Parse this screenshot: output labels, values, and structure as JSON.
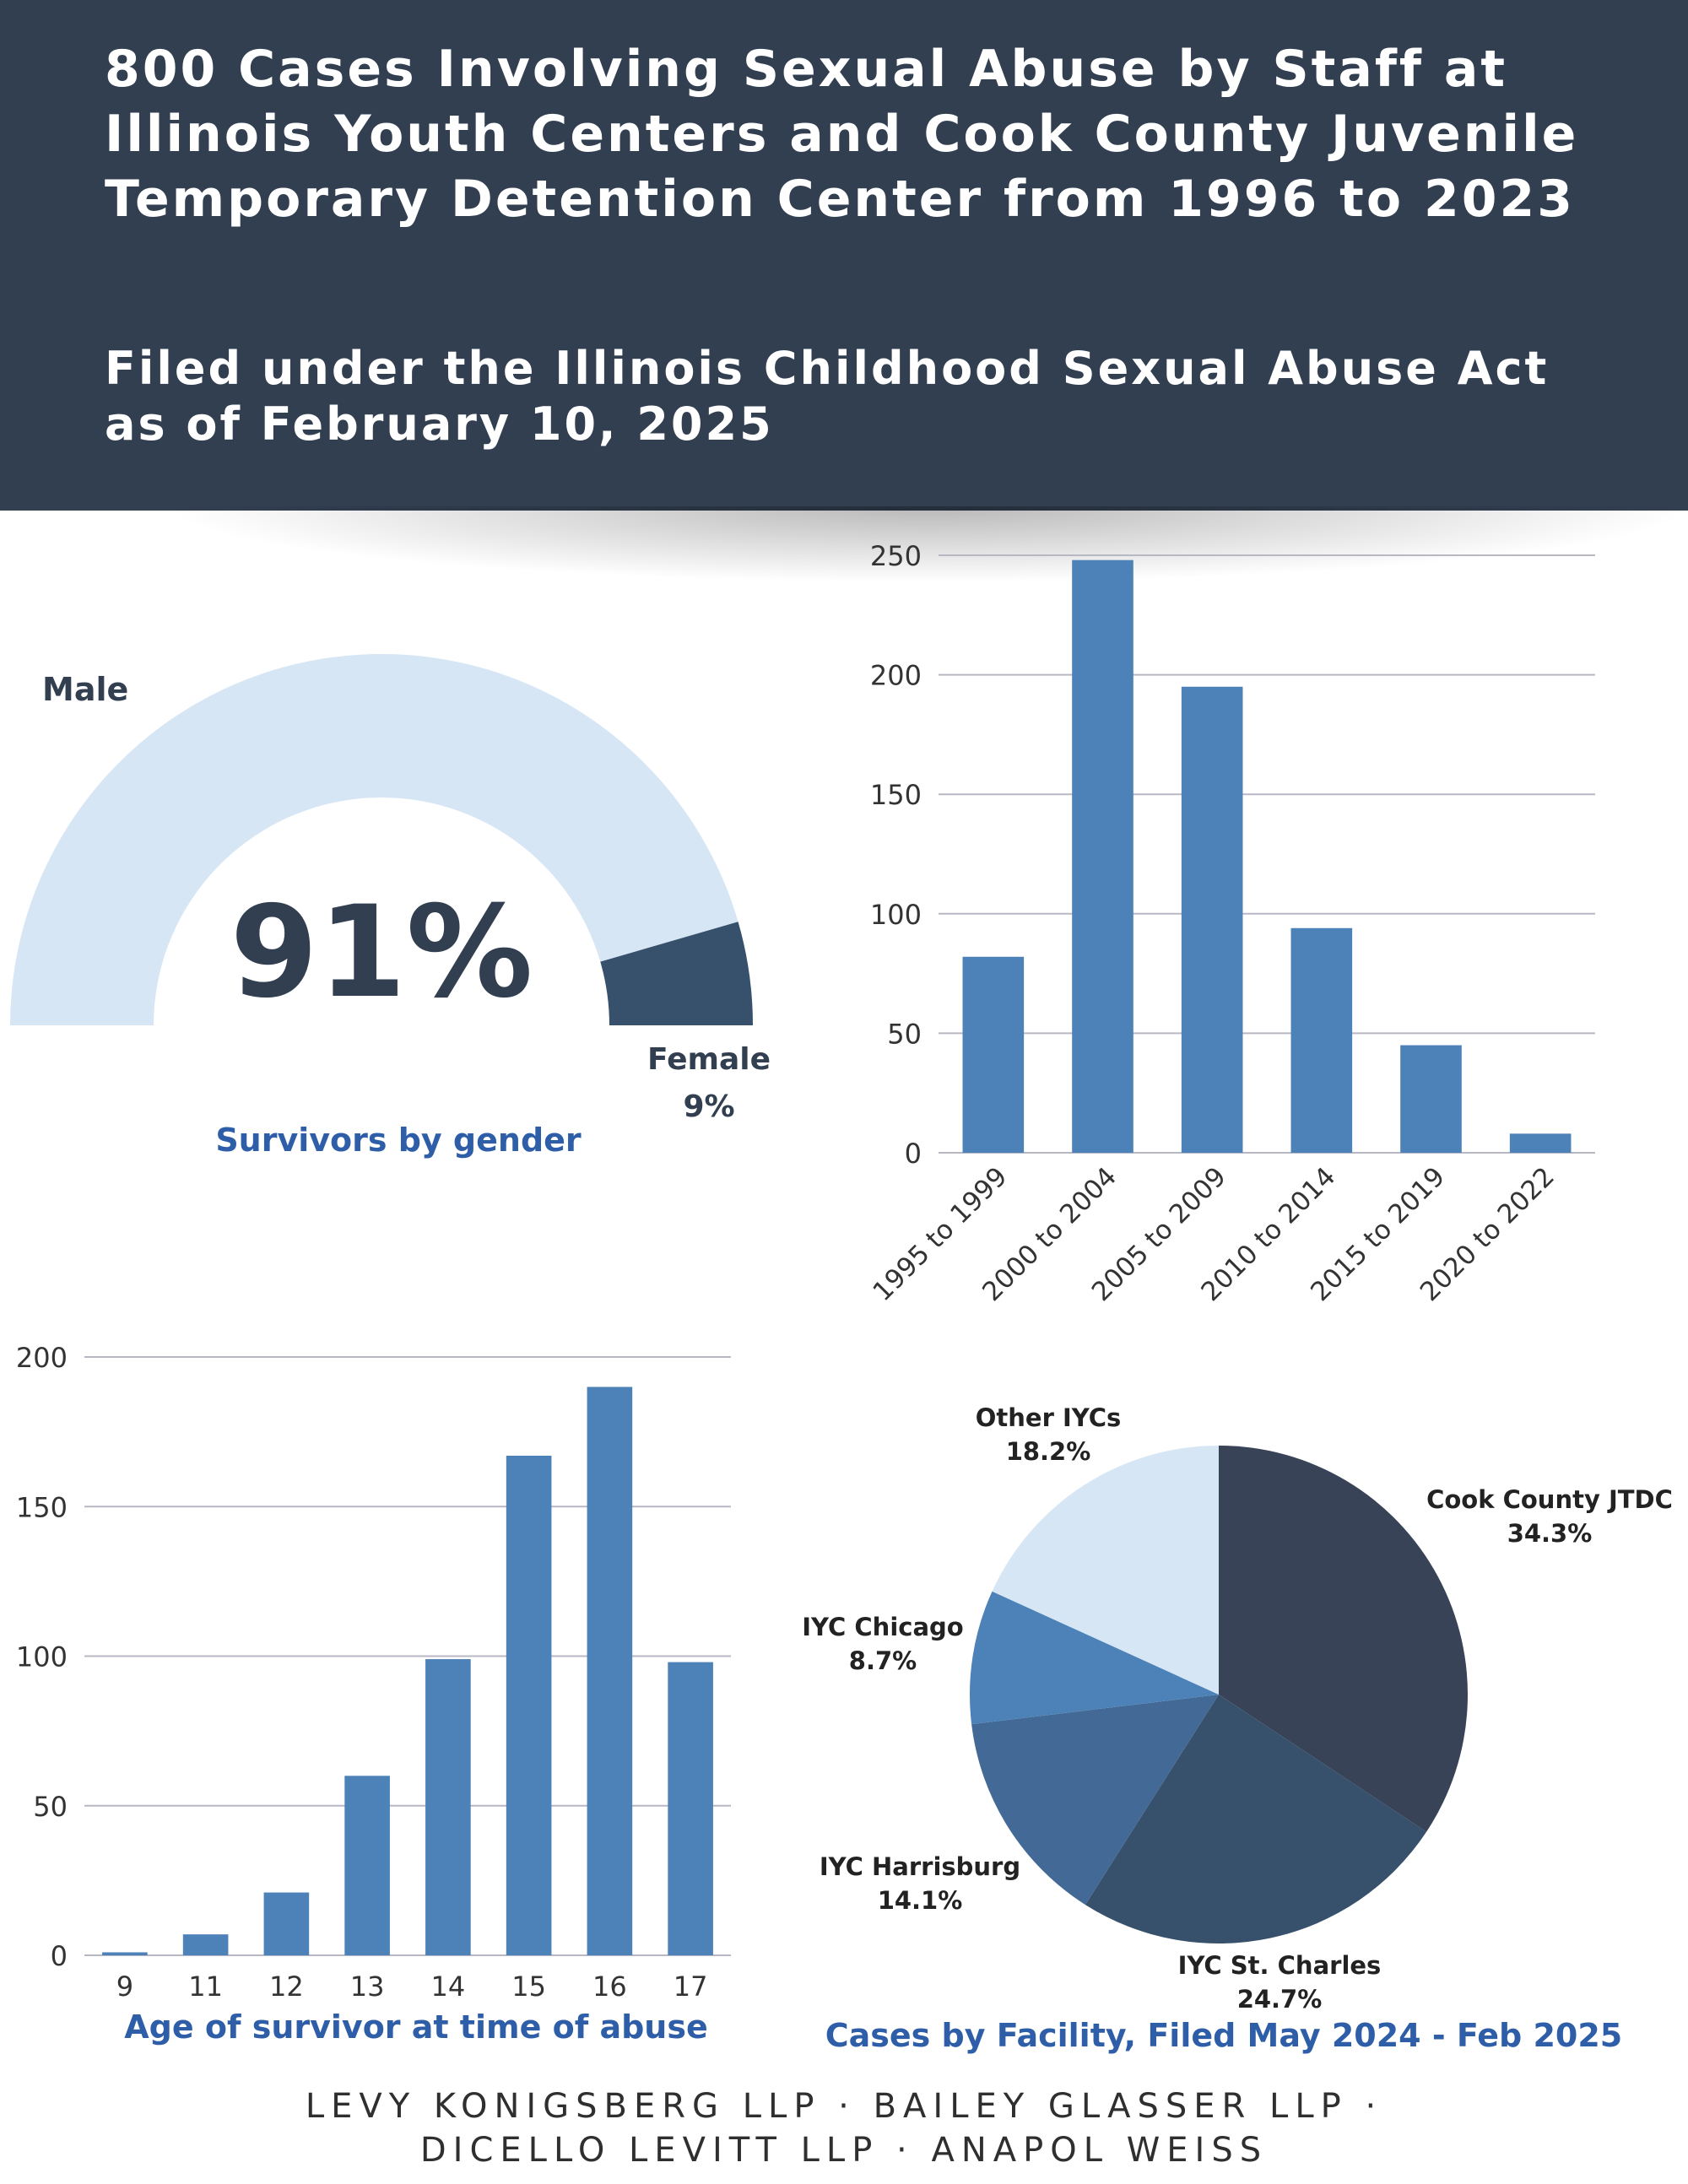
{
  "header": {
    "title": "800 Cases Involving Sexual Abuse by Staff at Illinois Youth Centers and Cook County Juvenile Temporary Detention Center from 1996 to 2023",
    "subtitle": "Filed under the Illinois Childhood Sexual Abuse Act as of February 10, 2025"
  },
  "footer": {
    "line1": "LEVY KONIGSBERG LLP · BAILEY GLASSER LLP ·",
    "line2": "DICELLO LEVITT LLP · ANAPOL WEISS"
  },
  "colors": {
    "header_bg": "#323f51",
    "bar": "#4d82b8",
    "gauge_light": "#d6e6f5",
    "gauge_dark": "#37506c",
    "caption": "#2f5ea8",
    "big_text": "#323f51"
  },
  "chart_data": [
    {
      "type": "gauge",
      "title": "Survivors by gender",
      "segments": [
        {
          "name": "Male",
          "value": 91,
          "color": "#d6e6f5"
        },
        {
          "name": "Female",
          "value": 9,
          "color": "#37506c"
        }
      ],
      "center_label": "91%",
      "male_label": "Male",
      "female_label": "Female",
      "female_value_label": "9%"
    },
    {
      "type": "bar",
      "title": "",
      "categories": [
        "1995 to 1999",
        "2000 to 2004",
        "2005 to 2009",
        "2010 to 2014",
        "2015 to 2019",
        "2020 to 2022"
      ],
      "values": [
        82,
        248,
        195,
        94,
        45,
        8
      ],
      "yticks": [
        0,
        50,
        100,
        150,
        200,
        250
      ],
      "ylim": [
        0,
        250
      ],
      "grid": true,
      "color": "#4d82b8"
    },
    {
      "type": "bar",
      "title": "Age of survivor at time of abuse",
      "categories": [
        "9",
        "11",
        "12",
        "13",
        "14",
        "15",
        "16",
        "17"
      ],
      "values": [
        1,
        7,
        21,
        60,
        99,
        167,
        190,
        98
      ],
      "yticks": [
        0,
        50,
        100,
        150,
        200
      ],
      "ylim": [
        0,
        200
      ],
      "grid": true,
      "color": "#4d82b8"
    },
    {
      "type": "pie",
      "title": "Cases by Facility, Filed May 2024 - Feb 2025",
      "slices": [
        {
          "name": "Cook County JTDC",
          "value": 34.3,
          "label": "34.3%",
          "color": "#394357"
        },
        {
          "name": "IYC St. Charles",
          "value": 24.7,
          "label": "24.7%",
          "color": "#37506c"
        },
        {
          "name": "IYC Harrisburg",
          "value": 14.1,
          "label": "14.1%",
          "color": "#436a96"
        },
        {
          "name": "IYC Chicago",
          "value": 8.7,
          "label": "8.7%",
          "color": "#4d82b8"
        },
        {
          "name": "Other IYCs",
          "value": 18.2,
          "label": "18.2%",
          "color": "#d6e6f5"
        }
      ]
    }
  ]
}
